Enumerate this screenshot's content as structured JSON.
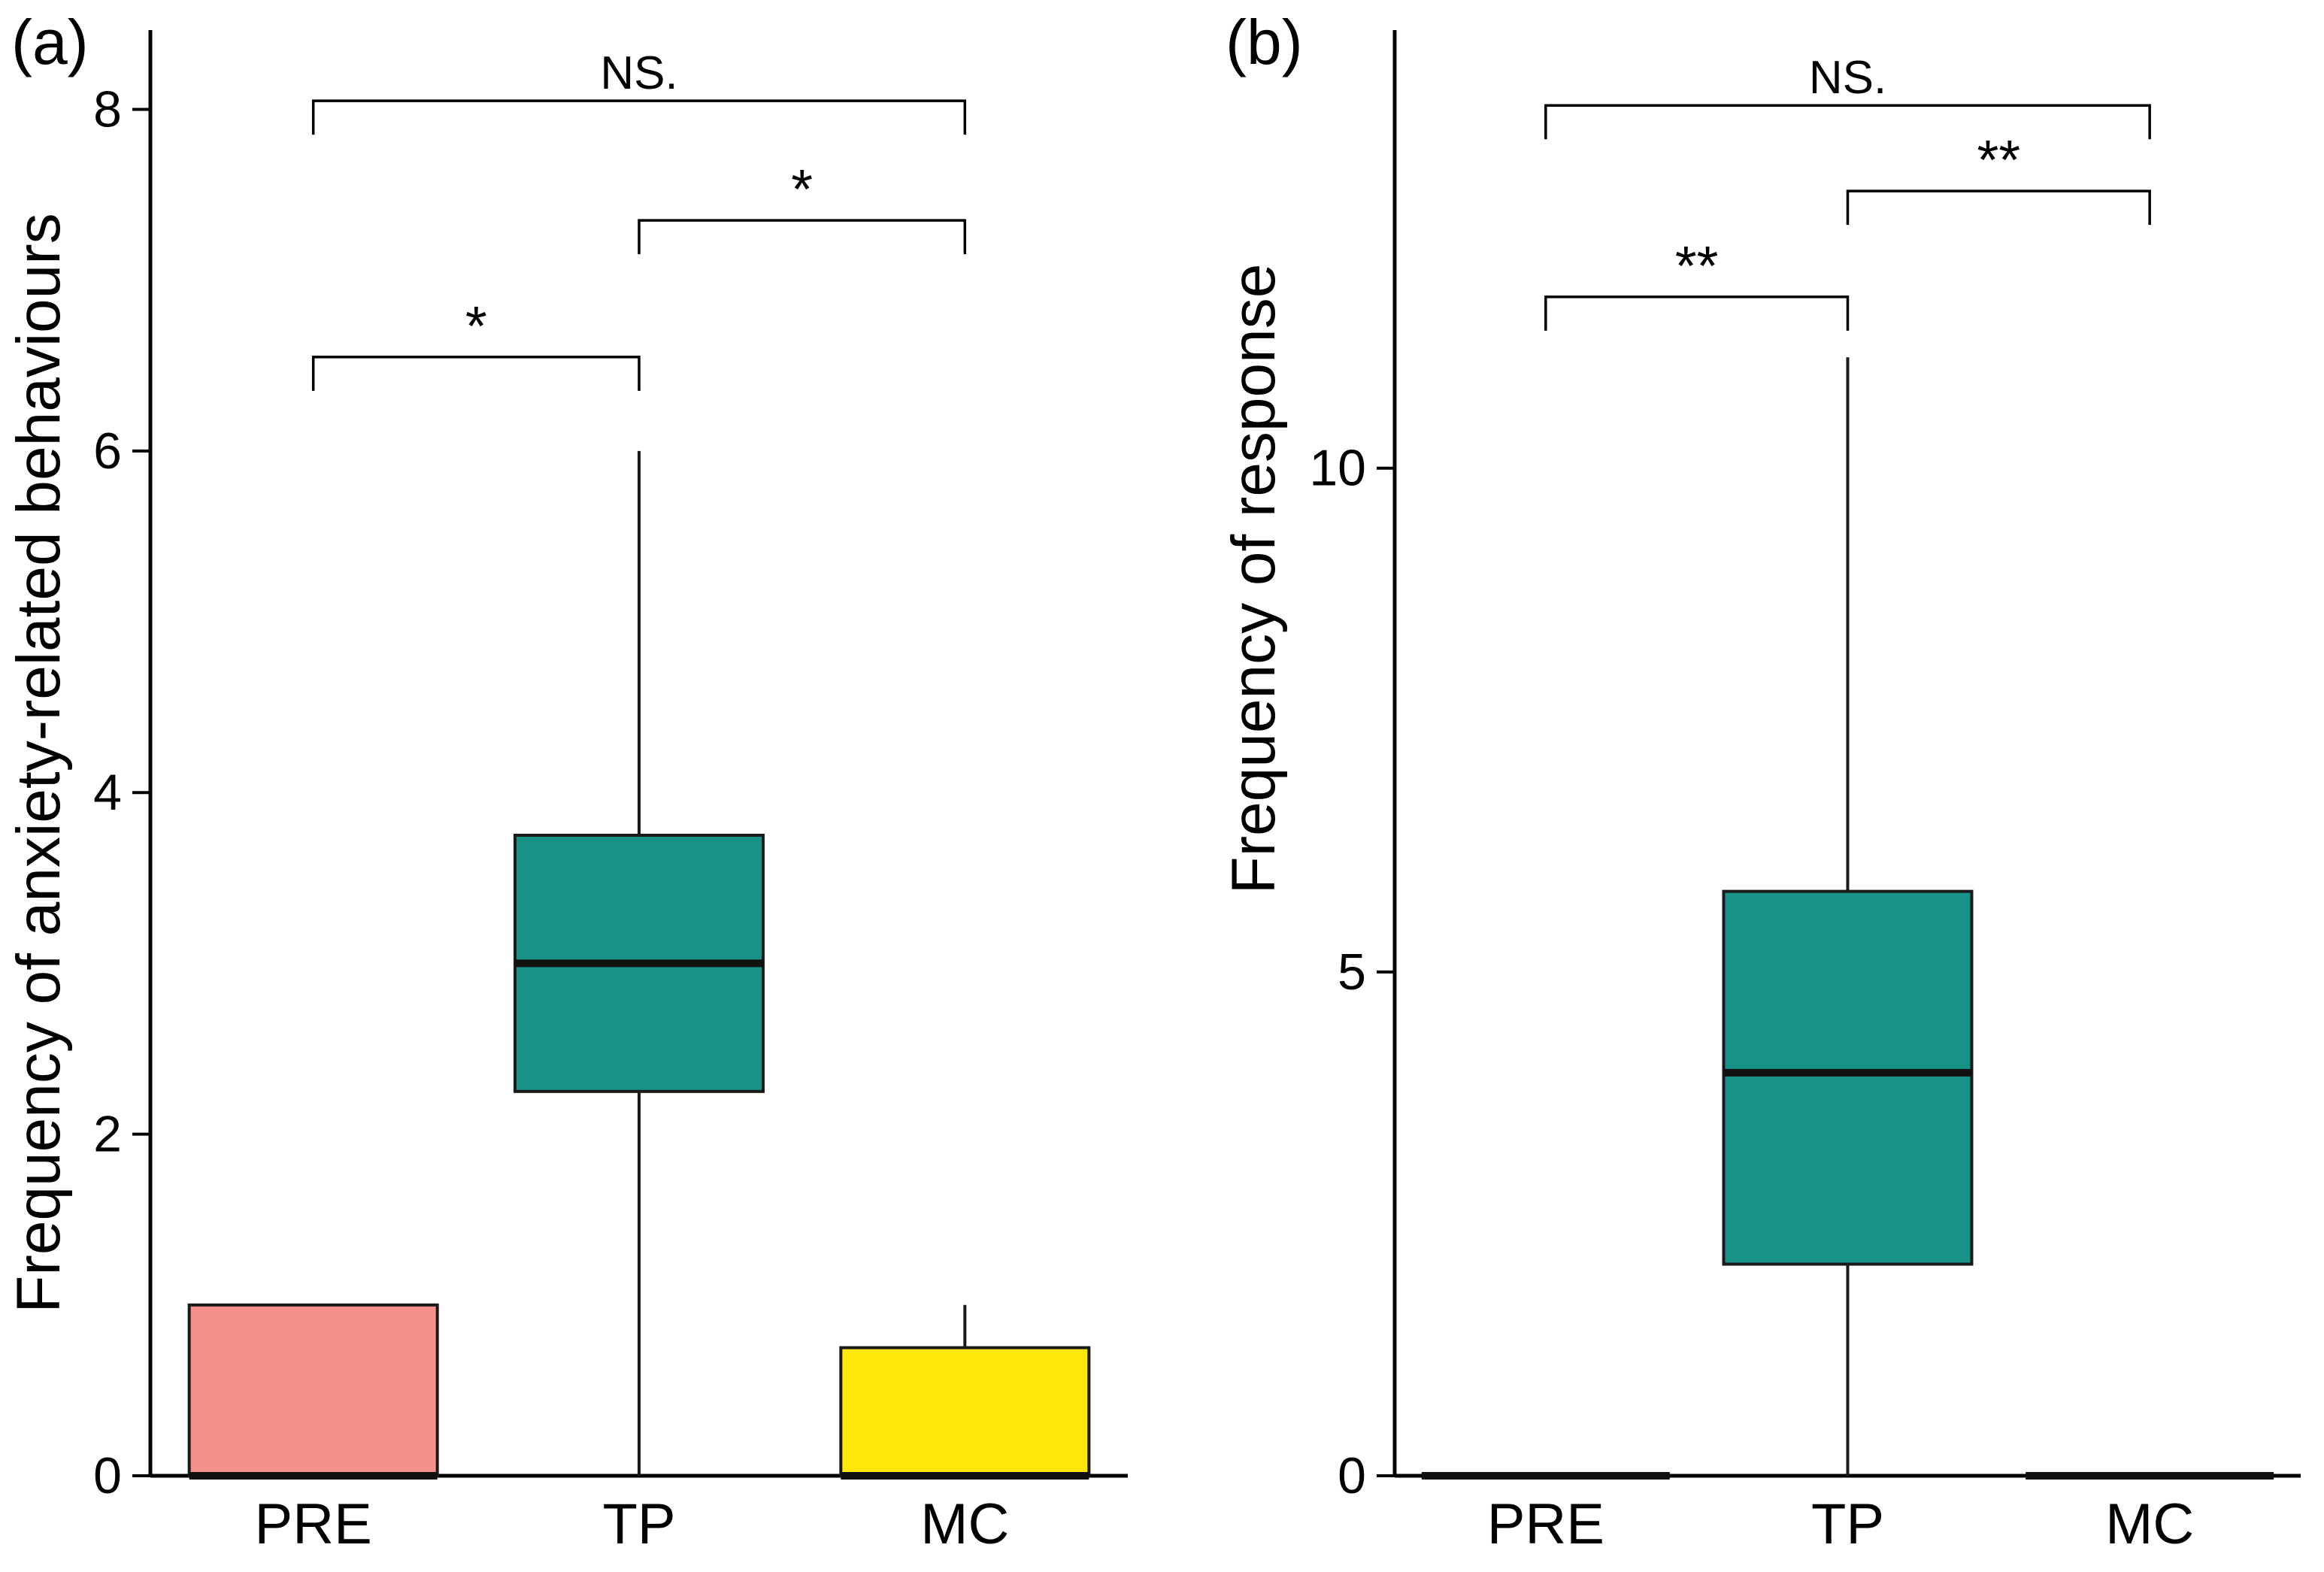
{
  "figure": {
    "background": "#ffffff",
    "panels": [
      "(a)",
      "(b)"
    ]
  },
  "chart_data": [
    {
      "type": "box",
      "panel_label": "(a)",
      "ylabel": "Frequency of anxiety-related behaviours",
      "xlabel": "",
      "categories": [
        "PRE",
        "TP",
        "MC"
      ],
      "yticks": [
        0,
        2,
        4,
        6,
        8
      ],
      "ylim": [
        0,
        8.2
      ],
      "grid": false,
      "legend": "none",
      "boxes": [
        {
          "category": "PRE",
          "whisker_low": 0,
          "q1": 0,
          "median": 0,
          "q3": 1.0,
          "whisker_high": 1.0,
          "fill": "#F5908B"
        },
        {
          "category": "TP",
          "whisker_low": 0,
          "q1": 2.25,
          "median": 3.0,
          "q3": 3.75,
          "whisker_high": 6.0,
          "fill": "#189186"
        },
        {
          "category": "MC",
          "whisker_low": 0,
          "q1": 0,
          "median": 0,
          "q3": 0.75,
          "whisker_high": 1.0,
          "fill": "#FFE70A"
        }
      ],
      "brackets": [
        {
          "from": "PRE",
          "to": "TP",
          "label": "*",
          "y": 6.55
        },
        {
          "from": "TP",
          "to": "MC",
          "label": "*",
          "y": 7.35
        },
        {
          "from": "PRE",
          "to": "MC",
          "label": "NS.",
          "y": 8.05
        }
      ]
    },
    {
      "type": "box",
      "panel_label": "(b)",
      "ylabel": "Frequency of response",
      "xlabel": "",
      "categories": [
        "PRE",
        "TP",
        "MC"
      ],
      "yticks": [
        0,
        5,
        10
      ],
      "ylim": [
        0,
        13.9
      ],
      "grid": false,
      "legend": "none",
      "boxes": [
        {
          "category": "PRE",
          "whisker_low": 0,
          "q1": 0,
          "median": 0,
          "q3": 0,
          "whisker_high": 0,
          "fill": "#F5908B"
        },
        {
          "category": "TP",
          "whisker_low": 0,
          "q1": 2.1,
          "median": 4.0,
          "q3": 5.8,
          "whisker_high": 11.1,
          "fill": "#189186"
        },
        {
          "category": "MC",
          "whisker_low": 0,
          "q1": 0,
          "median": 0,
          "q3": 0,
          "whisker_high": 0,
          "fill": "#FFE70A"
        }
      ],
      "brackets": [
        {
          "from": "PRE",
          "to": "TP",
          "label": "**",
          "y": 11.7
        },
        {
          "from": "TP",
          "to": "MC",
          "label": "**",
          "y": 12.75
        },
        {
          "from": "PRE",
          "to": "MC",
          "label": "NS.",
          "y": 13.6
        }
      ]
    }
  ]
}
